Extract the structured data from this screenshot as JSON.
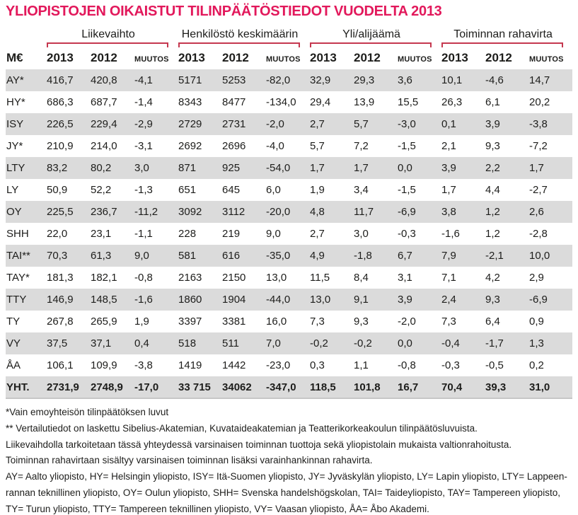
{
  "title": "YLIOPISTOJEN OIKAISTUT TILINPÄÄTÖSTIEDOT VUODELTA 2013",
  "colors": {
    "title_red": "#e2185b",
    "bracket_red": "#c5384f",
    "row_stripe_grey": "#dbdbdb"
  },
  "table": {
    "unit_label": "M€",
    "groups": [
      {
        "label": "Liikevaihto"
      },
      {
        "label": "Henkilöstö keskimäärin"
      },
      {
        "label": "Yli/alijäämä"
      },
      {
        "label": "Toiminnan rahavirta"
      }
    ],
    "sub_headers": [
      "2013",
      "2012",
      "MUUTOS"
    ],
    "rows": [
      {
        "label": "AY*",
        "values": [
          "416,7",
          "420,8",
          "-4,1",
          "5171",
          "5253",
          "-82,0",
          "32,9",
          "29,3",
          "3,6",
          "10,1",
          "-4,6",
          "14,7"
        ]
      },
      {
        "label": "HY*",
        "values": [
          "686,3",
          "687,7",
          "-1,4",
          "8343",
          "8477",
          "-134,0",
          "29,4",
          "13,9",
          "15,5",
          "26,3",
          "6,1",
          "20,2"
        ]
      },
      {
        "label": "ISY",
        "values": [
          "226,5",
          "229,4",
          "-2,9",
          "2729",
          "2731",
          "-2,0",
          "2,7",
          "5,7",
          "-3,0",
          "0,1",
          "3,9",
          "-3,8"
        ]
      },
      {
        "label": "JY*",
        "values": [
          "210,9",
          "214,0",
          "-3,1",
          "2692",
          "2696",
          "-4,0",
          "5,7",
          "7,2",
          "-1,5",
          "2,1",
          "9,3",
          "-7,2"
        ]
      },
      {
        "label": "LTY",
        "values": [
          "83,2",
          "80,2",
          "3,0",
          "871",
          "925",
          "-54,0",
          "1,7",
          "1,7",
          "0,0",
          "3,9",
          "2,2",
          "1,7"
        ]
      },
      {
        "label": "LY",
        "values": [
          "50,9",
          "52,2",
          "-1,3",
          "651",
          "645",
          "6,0",
          "1,9",
          "3,4",
          "-1,5",
          "1,7",
          "4,4",
          "-2,7"
        ]
      },
      {
        "label": "OY",
        "values": [
          "225,5",
          "236,7",
          "-11,2",
          "3092",
          "3112",
          "-20,0",
          "4,8",
          "11,7",
          "-6,9",
          "3,8",
          "1,2",
          "2,6"
        ]
      },
      {
        "label": "SHH",
        "values": [
          "22,0",
          "23,1",
          "-1,1",
          "228",
          "219",
          "9,0",
          "2,7",
          "3,0",
          "-0,3",
          "-1,6",
          "1,2",
          "-2,8"
        ]
      },
      {
        "label": "TAI**",
        "values": [
          "70,3",
          "61,3",
          "9,0",
          "581",
          "616",
          "-35,0",
          "4,9",
          "-1,8",
          "6,7",
          "7,9",
          "-2,1",
          "10,0"
        ]
      },
      {
        "label": "TAY*",
        "values": [
          "181,3",
          "182,1",
          "-0,8",
          "2163",
          "2150",
          "13,0",
          "11,5",
          "8,4",
          "3,1",
          "7,1",
          "4,2",
          "2,9"
        ]
      },
      {
        "label": "TTY",
        "values": [
          "146,9",
          "148,5",
          "-1,6",
          "1860",
          "1904",
          "-44,0",
          "13,0",
          "9,1",
          "3,9",
          "2,4",
          "9,3",
          "-6,9"
        ]
      },
      {
        "label": "TY",
        "values": [
          "267,8",
          "265,9",
          "1,9",
          "3397",
          "3381",
          "16,0",
          "7,3",
          "9,3",
          "-2,0",
          "7,3",
          "6,4",
          "0,9"
        ]
      },
      {
        "label": "VY",
        "values": [
          "37,5",
          "37,1",
          "0,4",
          "518",
          "511",
          "7,0",
          "-0,2",
          "-0,2",
          "0,0",
          "-0,4",
          "-1,7",
          "1,3"
        ]
      },
      {
        "label": "ÅA",
        "values": [
          "106,1",
          "109,9",
          "-3,8",
          "1419",
          "1442",
          "-23,0",
          "0,3",
          "1,1",
          "-0,8",
          "-0,3",
          "-0,5",
          "0,2"
        ]
      },
      {
        "label": "YHT.",
        "total": true,
        "values": [
          "2731,9",
          "2748,9",
          "-17,0",
          "33 715",
          "34062",
          "-347,0",
          "118,5",
          "101,8",
          "16,7",
          "70,4",
          "39,3",
          "31,0"
        ]
      }
    ]
  },
  "footnotes": [
    "*Vain emoyhteisön tilinpäätöksen luvut",
    "** Vertailutiedot on laskettu Sibelius-Akatemian, Kuvataideakatemian ja Teatterikorkeakoulun tilinpäätösluvuista.",
    "Liikevaihdolla tarkoitetaan tässä yhteydessä varsinaisen toiminnan tuottoja sekä yliopistolain mukaista valtionrahoitusta.",
    "Toiminnan rahavirtaan sisältyy varsinaisen toiminnan  lisäksi varainhankinnan rahavirta.",
    "AY= Aalto yliopisto, HY= Helsingin yliopisto, ISY= Itä-Suomen yliopisto, JY= Jyväskylän yliopisto, LY= Lapin yliopisto, LTY= Lappeen-",
    "rannan teknillinen yliopisto, OY= Oulun yliopisto, SHH= Svenska handelshögskolan, TAI= Taideyliopisto, TAY= Tampereen yliopisto,",
    "TY= Turun yliopisto, TTY= Tampereen teknillinen yliopisto, VY= Vaasan yliopisto, ÅA= Åbo Akademi."
  ]
}
